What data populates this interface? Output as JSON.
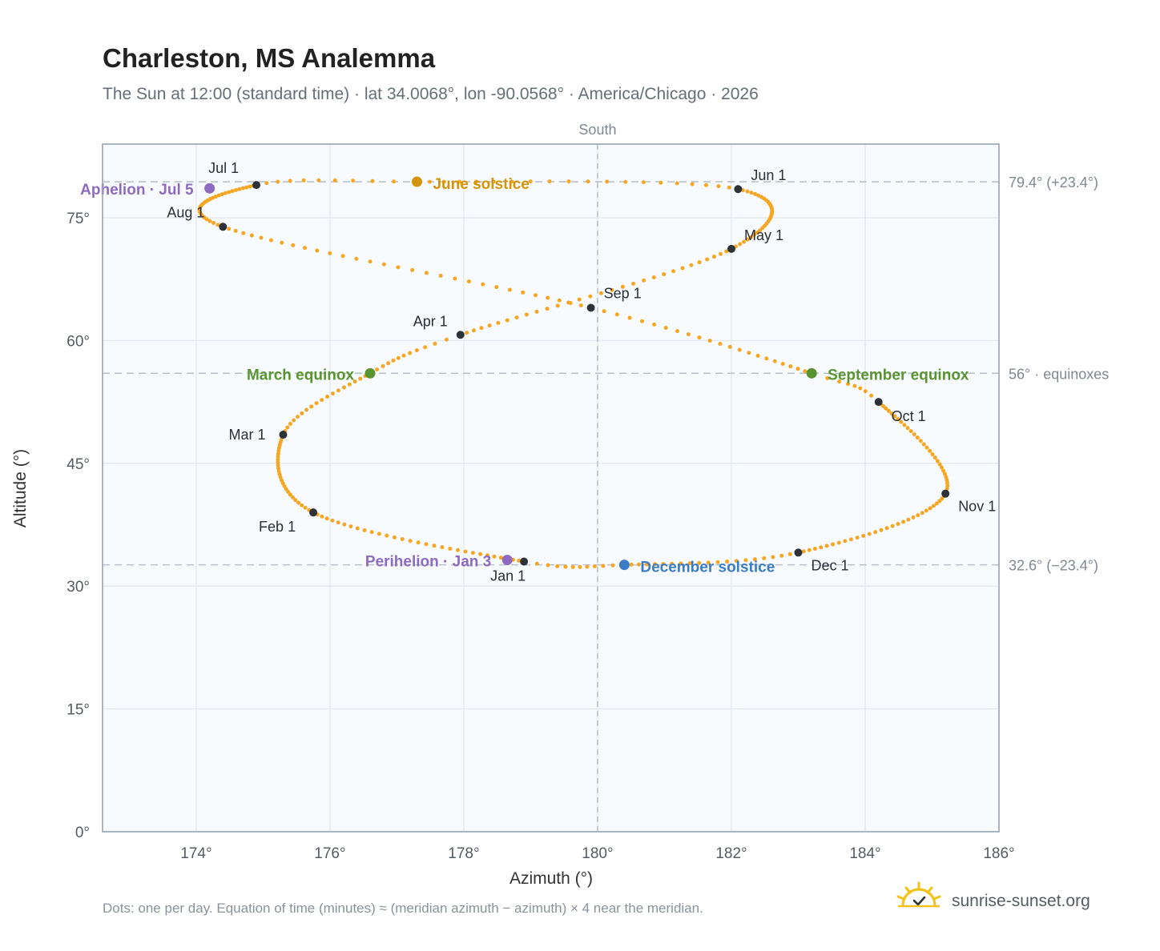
{
  "title": "Charleston, MS Analemma",
  "subtitle": "The Sun at 12:00 (standard time) · lat 34.0068°, lon -90.0568° · America/Chicago · 2026",
  "footnote": "Dots: one per day. Equation of time (minutes) ≈ (meridian azimuth − azimuth) × 4 near the meridian.",
  "brand": "sunrise-sunset.org",
  "brand_icon": "sun-logo-icon",
  "colors": {
    "curve": "#f5a623",
    "month_dot": "#2d3238",
    "june_solstice": "#d4940a",
    "december_solstice": "#3b7dc4",
    "equinox": "#5a9432",
    "apsis": "#8e6bbf",
    "plot_bg": "#f8fbfd",
    "grid": "#e4e9ef",
    "ref_line": "#b8c2cd",
    "frame": "#9aa5b1"
  },
  "chart_data": {
    "type": "scatter",
    "title": "Charleston, MS Analemma",
    "xlabel": "Azimuth (°)",
    "ylabel": "Altitude (°)",
    "xlim": [
      172.6,
      186
    ],
    "ylim": [
      0,
      84
    ],
    "grid": true,
    "x_ticks": [
      174,
      176,
      178,
      180,
      182,
      184,
      186
    ],
    "x_tick_labels": [
      "174°",
      "176°",
      "178°",
      "180°",
      "182°",
      "184°",
      "186°"
    ],
    "y_ticks": [
      0,
      15,
      30,
      45,
      60,
      75
    ],
    "y_tick_labels": [
      "0°",
      "15°",
      "30°",
      "45°",
      "60°",
      "75°"
    ],
    "vertical_reference": {
      "x": 180,
      "label": "South"
    },
    "horizontal_references": [
      {
        "y": 79.4,
        "label": "79.4° (+23.4°)"
      },
      {
        "y": 56,
        "label": "56° · equinoxes"
      },
      {
        "y": 32.6,
        "label": "32.6° (−23.4°)"
      }
    ],
    "curve_anchors": [
      {
        "day": 1,
        "az": 178.9,
        "alt": 33.0
      },
      {
        "day": 32,
        "az": 175.75,
        "alt": 39.0
      },
      {
        "day": 60,
        "az": 175.3,
        "alt": 48.5
      },
      {
        "day": 79,
        "az": 176.6,
        "alt": 56.0
      },
      {
        "day": 91,
        "az": 177.95,
        "alt": 60.7
      },
      {
        "day": 121,
        "az": 182.0,
        "alt": 71.2
      },
      {
        "day": 152,
        "az": 182.1,
        "alt": 78.5
      },
      {
        "day": 172,
        "az": 177.3,
        "alt": 79.4
      },
      {
        "day": 182,
        "az": 174.9,
        "alt": 79.0
      },
      {
        "day": 213,
        "az": 174.4,
        "alt": 73.9
      },
      {
        "day": 244,
        "az": 179.9,
        "alt": 64.0
      },
      {
        "day": 266,
        "az": 183.2,
        "alt": 56.0
      },
      {
        "day": 274,
        "az": 184.2,
        "alt": 52.5
      },
      {
        "day": 305,
        "az": 185.2,
        "alt": 41.3
      },
      {
        "day": 335,
        "az": 183.0,
        "alt": 34.1
      },
      {
        "day": 355,
        "az": 180.4,
        "alt": 32.6
      },
      {
        "day": 366,
        "az": 178.9,
        "alt": 33.0
      }
    ],
    "month_points": [
      {
        "label": "Jan 1",
        "az": 178.9,
        "alt": 33.0
      },
      {
        "label": "Feb 1",
        "az": 175.75,
        "alt": 39.0
      },
      {
        "label": "Mar 1",
        "az": 175.3,
        "alt": 48.5
      },
      {
        "label": "Apr 1",
        "az": 177.95,
        "alt": 60.7
      },
      {
        "label": "May 1",
        "az": 182.0,
        "alt": 71.2
      },
      {
        "label": "Jun 1",
        "az": 182.1,
        "alt": 78.5
      },
      {
        "label": "Jul 1",
        "az": 174.9,
        "alt": 79.0
      },
      {
        "label": "Aug 1",
        "az": 174.4,
        "alt": 73.9
      },
      {
        "label": "Sep 1",
        "az": 179.9,
        "alt": 64.0
      },
      {
        "label": "Oct 1",
        "az": 184.2,
        "alt": 52.5
      },
      {
        "label": "Nov 1",
        "az": 185.2,
        "alt": 41.3
      },
      {
        "label": "Dec 1",
        "az": 183.0,
        "alt": 34.1
      }
    ],
    "events": [
      {
        "label": "June solstice",
        "az": 177.3,
        "alt": 79.4,
        "color": "#d4940a"
      },
      {
        "label": "December solstice",
        "az": 180.4,
        "alt": 32.6,
        "color": "#3b7dc4"
      },
      {
        "label": "March equinox",
        "az": 176.6,
        "alt": 56.0,
        "color": "#5a9432"
      },
      {
        "label": "September equinox",
        "az": 183.2,
        "alt": 56.0,
        "color": "#5a9432"
      },
      {
        "label": "Aphelion · Jul 5",
        "az": 174.2,
        "alt": 78.6,
        "color": "#8e6bbf"
      },
      {
        "label": "Perihelion · Jan 3",
        "az": 178.65,
        "alt": 33.2,
        "color": "#8e6bbf"
      }
    ]
  }
}
